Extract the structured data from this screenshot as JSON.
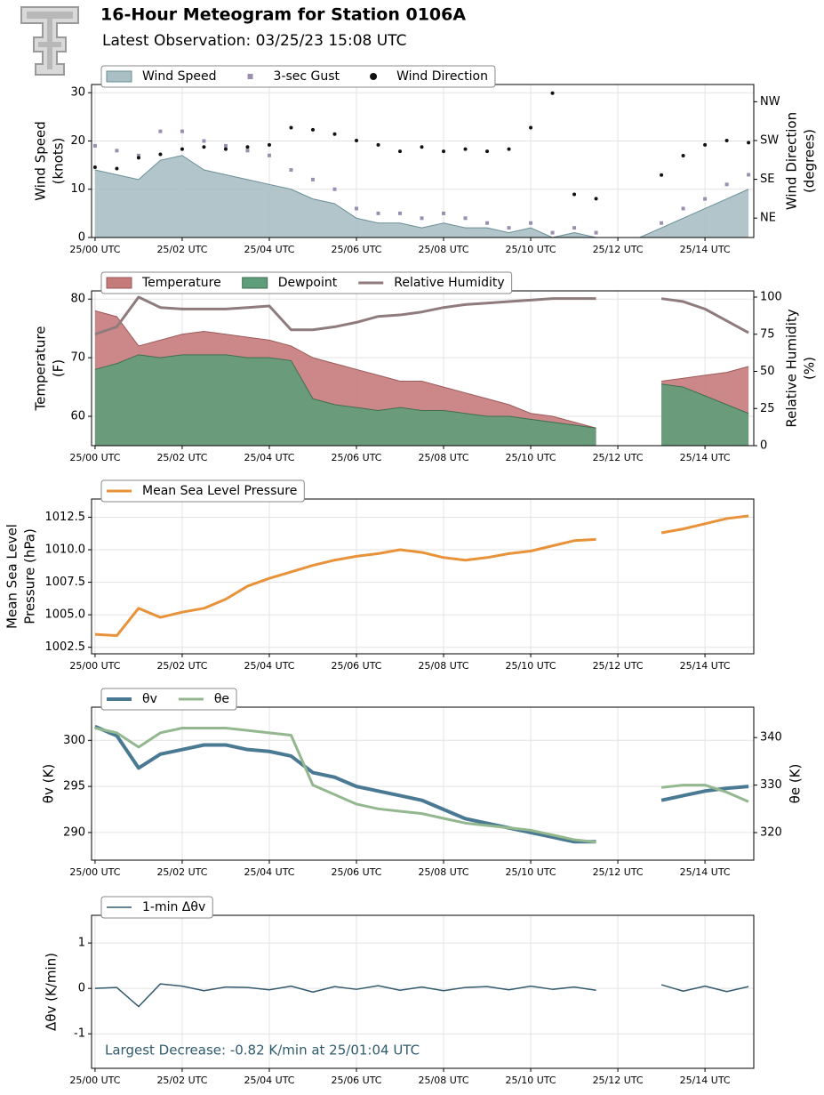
{
  "header": {
    "title": "16-Hour Meteogram for Station 0106A",
    "subtitle": "Latest Observation: 03/25/23 15:08 UTC"
  },
  "chart_data": [
    {
      "type": "line",
      "legend": "upper left",
      "grid": true,
      "x": [
        0,
        0.5,
        1,
        1.5,
        2,
        2.5,
        3,
        3.5,
        4,
        4.5,
        5,
        5.5,
        6,
        6.5,
        7,
        7.5,
        8,
        8.5,
        9,
        9.5,
        10,
        10.5,
        11,
        11.5,
        12,
        12.5,
        13,
        13.5,
        14,
        14.5,
        15
      ],
      "xlim": [
        -0.08,
        15.12
      ],
      "xticks": [
        {
          "value": 0,
          "label": "25/00 UTC"
        },
        {
          "value": 2,
          "label": "25/02 UTC"
        },
        {
          "value": 4,
          "label": "25/04 UTC"
        },
        {
          "value": 6,
          "label": "25/06 UTC"
        },
        {
          "value": 8,
          "label": "25/08 UTC"
        },
        {
          "value": 10,
          "label": "25/10 UTC"
        },
        {
          "value": 12,
          "label": "25/12 UTC"
        },
        {
          "value": 14,
          "label": "25/14 UTC"
        }
      ],
      "y_label": [
        "Wind Speed",
        "(knots)"
      ],
      "y2_label": [
        "Wind Direction",
        "(degrees)"
      ],
      "ylim": [
        0,
        31.7
      ],
      "yticks": [
        0,
        10,
        20,
        30
      ],
      "y2lim": [
        0,
        355
      ],
      "y2ticks": [
        {
          "value": 45,
          "label": "NE"
        },
        {
          "value": 135,
          "label": "SE"
        },
        {
          "value": 225,
          "label": "SW"
        },
        {
          "value": 315,
          "label": "NW"
        }
      ],
      "series": [
        {
          "name": "Wind Speed",
          "style": "area",
          "color": "#a9bfc4",
          "edge": "#6a8f96",
          "values": [
            14,
            13,
            12,
            16,
            17,
            14,
            13,
            12,
            11,
            10,
            8,
            7,
            4,
            3,
            3,
            2,
            3,
            2,
            2,
            1,
            2,
            0,
            1,
            0,
            0,
            0,
            2,
            4,
            6,
            8,
            10
          ]
        },
        {
          "name": "3-sec Gust",
          "style": "scatter",
          "marker": "square",
          "color": "#9b8fb0",
          "values": [
            19,
            18,
            17,
            22,
            22,
            20,
            19,
            18,
            17,
            14,
            12,
            10,
            6,
            5,
            5,
            4,
            5,
            4,
            3,
            2,
            3,
            1,
            2,
            1,
            null,
            null,
            3,
            6,
            8,
            11,
            13
          ]
        },
        {
          "name": "Wind Direction",
          "style": "scatter",
          "marker": "circle",
          "color": "#111111",
          "axis": "y2",
          "values": [
            163,
            160,
            185,
            193,
            205,
            210,
            205,
            210,
            215,
            255,
            250,
            240,
            225,
            215,
            200,
            210,
            200,
            205,
            200,
            205,
            255,
            335,
            100,
            90,
            null,
            null,
            145,
            190,
            215,
            225,
            220
          ]
        }
      ]
    },
    {
      "type": "line",
      "legend": "upper left",
      "grid": true,
      "x": [
        0,
        0.5,
        1,
        1.5,
        2,
        2.5,
        3,
        3.5,
        4,
        4.5,
        5,
        5.5,
        6,
        6.5,
        7,
        7.5,
        8,
        8.5,
        9,
        9.5,
        10,
        10.5,
        11,
        11.5,
        12,
        12.5,
        13,
        13.5,
        14,
        14.5,
        15
      ],
      "xlim": [
        -0.08,
        15.12
      ],
      "xticks": [
        {
          "value": 0,
          "label": "25/00 UTC"
        },
        {
          "value": 2,
          "label": "25/02 UTC"
        },
        {
          "value": 4,
          "label": "25/04 UTC"
        },
        {
          "value": 6,
          "label": "25/06 UTC"
        },
        {
          "value": 8,
          "label": "25/08 UTC"
        },
        {
          "value": 10,
          "label": "25/10 UTC"
        },
        {
          "value": 12,
          "label": "25/12 UTC"
        },
        {
          "value": 14,
          "label": "25/14 UTC"
        }
      ],
      "y_label": [
        "Temperature",
        "(F)"
      ],
      "y2_label": [
        "Relative Humidity",
        "(%)"
      ],
      "ylim": [
        55,
        81.4
      ],
      "yticks": [
        60,
        70,
        80
      ],
      "y2lim": [
        0,
        104.2
      ],
      "y2ticks": [
        0,
        25,
        50,
        75,
        100
      ],
      "series": [
        {
          "name": "Temperature",
          "style": "area",
          "color": "#c67b7b",
          "edge": "#9c5a5a",
          "values": [
            78,
            77,
            72,
            73,
            74,
            74.5,
            74,
            73.5,
            73,
            72,
            70,
            69,
            68,
            67,
            66,
            66,
            65,
            64,
            63,
            62,
            60.5,
            60,
            59,
            58,
            null,
            null,
            66,
            66.5,
            67,
            67.5,
            68.5
          ]
        },
        {
          "name": "Dewpoint",
          "style": "area",
          "color": "#5f9e7a",
          "edge": "#3f6e52",
          "values": [
            68,
            69,
            70.5,
            70,
            70.5,
            70.5,
            70.5,
            70,
            70,
            69.5,
            63,
            62,
            61.5,
            61,
            61.5,
            61,
            61,
            60.5,
            60,
            60,
            59.5,
            59,
            58.5,
            58,
            null,
            null,
            65.5,
            65,
            63.5,
            62,
            60.5
          ]
        },
        {
          "name": "Relative Humidity",
          "style": "line",
          "width": 3,
          "color": "#8f7b7b",
          "axis": "y2",
          "values": [
            75,
            80,
            100,
            93,
            92,
            92,
            92,
            93,
            94,
            78,
            78,
            80,
            83,
            87,
            88,
            90,
            93,
            95,
            96,
            97,
            98,
            99,
            99,
            99,
            null,
            null,
            99,
            97,
            92,
            84,
            76
          ]
        }
      ]
    },
    {
      "type": "line",
      "legend": "upper left",
      "grid": true,
      "x": [
        0,
        0.5,
        1,
        1.5,
        2,
        2.5,
        3,
        3.5,
        4,
        4.5,
        5,
        5.5,
        6,
        6.5,
        7,
        7.5,
        8,
        8.5,
        9,
        9.5,
        10,
        10.5,
        11,
        11.5,
        12,
        12.5,
        13,
        13.5,
        14,
        14.5,
        15
      ],
      "xlim": [
        -0.08,
        15.12
      ],
      "xticks": [
        {
          "value": 0,
          "label": "25/00 UTC"
        },
        {
          "value": 2,
          "label": "25/02 UTC"
        },
        {
          "value": 4,
          "label": "25/04 UTC"
        },
        {
          "value": 6,
          "label": "25/06 UTC"
        },
        {
          "value": 8,
          "label": "25/08 UTC"
        },
        {
          "value": 10,
          "label": "25/10 UTC"
        },
        {
          "value": 12,
          "label": "25/12 UTC"
        },
        {
          "value": 14,
          "label": "25/14 UTC"
        }
      ],
      "y_label": [
        "Mean Sea Level",
        "Pressure (hPa)"
      ],
      "ylim": [
        1002.0,
        1013.9
      ],
      "yticks": [
        1002.5,
        {
          "value": 1005,
          "label": "1005.0"
        },
        1007.5,
        {
          "value": 1010,
          "label": "1010.0"
        },
        1012.5
      ],
      "series": [
        {
          "name": "Mean Sea Level Pressure",
          "style": "line",
          "width": 3,
          "color": "#e8923a",
          "values": [
            1003.5,
            1003.4,
            1005.5,
            1004.8,
            1005.2,
            1005.5,
            1006.2,
            1007.2,
            1007.8,
            1008.3,
            1008.8,
            1009.2,
            1009.5,
            1009.7,
            1010.0,
            1009.8,
            1009.4,
            1009.2,
            1009.4,
            1009.7,
            1009.9,
            1010.3,
            1010.7,
            1010.8,
            null,
            null,
            1011.3,
            1011.6,
            1012.0,
            1012.4,
            1012.6
          ]
        }
      ]
    },
    {
      "type": "line",
      "legend": "upper left",
      "grid": true,
      "x": [
        0,
        0.5,
        1,
        1.5,
        2,
        2.5,
        3,
        3.5,
        4,
        4.5,
        5,
        5.5,
        6,
        6.5,
        7,
        7.5,
        8,
        8.5,
        9,
        9.5,
        10,
        10.5,
        11,
        11.5,
        12,
        12.5,
        13,
        13.5,
        14,
        14.5,
        15
      ],
      "xlim": [
        -0.08,
        15.12
      ],
      "xticks": [
        {
          "value": 0,
          "label": "25/00 UTC"
        },
        {
          "value": 2,
          "label": "25/02 UTC"
        },
        {
          "value": 4,
          "label": "25/04 UTC"
        },
        {
          "value": 6,
          "label": "25/06 UTC"
        },
        {
          "value": 8,
          "label": "25/08 UTC"
        },
        {
          "value": 10,
          "label": "25/10 UTC"
        },
        {
          "value": 12,
          "label": "25/12 UTC"
        },
        {
          "value": 14,
          "label": "25/14 UTC"
        }
      ],
      "y_label": [
        "θv (K)"
      ],
      "y2_label": [
        "θe (K)"
      ],
      "ylim": [
        287.0,
        303.6
      ],
      "yticks": [
        290,
        295,
        300
      ],
      "y2lim": [
        314.2,
        346.4
      ],
      "y2ticks": [
        320,
        330,
        340
      ],
      "series": [
        {
          "name": "θv",
          "style": "line",
          "width": 4,
          "color": "#4a7a93",
          "values": [
            301.5,
            300.5,
            297,
            298.5,
            299,
            299.5,
            299.5,
            299,
            298.8,
            298.3,
            296.5,
            296,
            295,
            294.5,
            294,
            293.5,
            292.5,
            291.5,
            291,
            290.5,
            290,
            289.5,
            289,
            289,
            null,
            null,
            293.5,
            294,
            294.5,
            294.8,
            295
          ]
        },
        {
          "name": "θe",
          "style": "line",
          "width": 3,
          "color": "#93b78e",
          "axis": "y2",
          "values": [
            342,
            341,
            338,
            341,
            342,
            342,
            342,
            341.5,
            341,
            340.5,
            330,
            328,
            326,
            325,
            324.5,
            324,
            323,
            322,
            321.5,
            321,
            320.5,
            319.5,
            318.5,
            318,
            null,
            null,
            329.5,
            330,
            330,
            328.5,
            326.5
          ]
        }
      ]
    },
    {
      "type": "line",
      "legend": "upper left",
      "grid": true,
      "x": [
        0,
        0.5,
        1,
        1.5,
        2,
        2.5,
        3,
        3.5,
        4,
        4.5,
        5,
        5.5,
        6,
        6.5,
        7,
        7.5,
        8,
        8.5,
        9,
        9.5,
        10,
        10.5,
        11,
        11.5,
        12,
        12.5,
        13,
        13.5,
        14,
        14.5,
        15
      ],
      "xlim": [
        -0.08,
        15.12
      ],
      "xticks": [
        {
          "value": 0,
          "label": "25/00 UTC"
        },
        {
          "value": 2,
          "label": "25/02 UTC"
        },
        {
          "value": 4,
          "label": "25/04 UTC"
        },
        {
          "value": 6,
          "label": "25/06 UTC"
        },
        {
          "value": 8,
          "label": "25/08 UTC"
        },
        {
          "value": 10,
          "label": "25/10 UTC"
        },
        {
          "value": 12,
          "label": "25/12 UTC"
        },
        {
          "value": 14,
          "label": "25/14 UTC"
        }
      ],
      "y_label": [
        "Δθv (K/min)"
      ],
      "ylim": [
        -1.76,
        1.61
      ],
      "yticks": [
        -1,
        0,
        1
      ],
      "annotation": "Largest Decrease: -0.82 K/min at 25/01:04 UTC",
      "series": [
        {
          "name": "1-min Δθv",
          "style": "line",
          "width": 1.5,
          "color": "#335a6e",
          "values": [
            0,
            0.02,
            -0.4,
            0.1,
            0.05,
            -0.05,
            0.03,
            0.02,
            -0.03,
            0.05,
            -0.08,
            0.04,
            -0.02,
            0.06,
            -0.04,
            0.03,
            -0.05,
            0.02,
            0.04,
            -0.03,
            0.05,
            -0.02,
            0.03,
            -0.04,
            null,
            null,
            0.08,
            -0.06,
            0.05,
            -0.07,
            0.04
          ]
        }
      ]
    }
  ]
}
